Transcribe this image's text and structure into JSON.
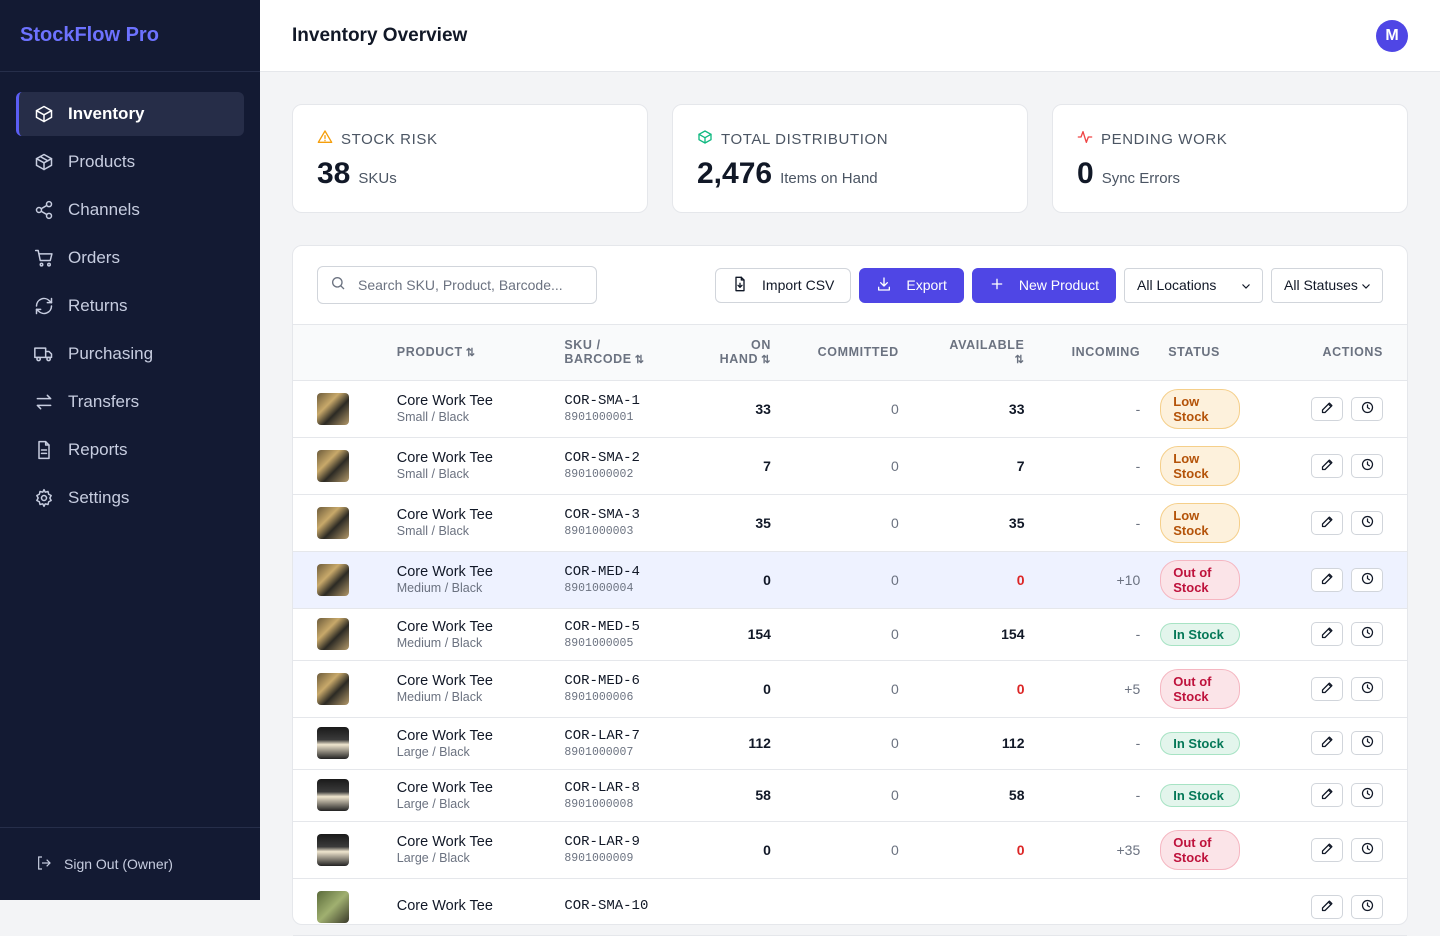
{
  "app": {
    "name": "StockFlow Pro"
  },
  "sidebar": {
    "items": [
      {
        "label": "Inventory",
        "icon": "box-icon",
        "active": true
      },
      {
        "label": "Products",
        "icon": "package-icon"
      },
      {
        "label": "Channels",
        "icon": "share-icon"
      },
      {
        "label": "Orders",
        "icon": "cart-icon"
      },
      {
        "label": "Returns",
        "icon": "refresh-icon"
      },
      {
        "label": "Purchasing",
        "icon": "truck-icon"
      },
      {
        "label": "Transfers",
        "icon": "transfer-icon"
      },
      {
        "label": "Reports",
        "icon": "document-icon"
      },
      {
        "label": "Settings",
        "icon": "gear-icon"
      }
    ],
    "signout_label": "Sign Out (Owner)"
  },
  "header": {
    "title": "Inventory Overview",
    "avatar_initial": "M"
  },
  "stats": [
    {
      "label": "STOCK RISK",
      "value": "38",
      "unit": "SKUs",
      "icon": "warning-icon",
      "color": "#f59e0b"
    },
    {
      "label": "TOTAL DISTRIBUTION",
      "value": "2,476",
      "unit": "Items on Hand",
      "icon": "cube-icon",
      "color": "#10b981"
    },
    {
      "label": "PENDING WORK",
      "value": "0",
      "unit": "Sync Errors",
      "icon": "activity-icon",
      "color": "#ef4444"
    }
  ],
  "toolbar": {
    "search_placeholder": "Search SKU, Product, Barcode...",
    "import_label": "Import CSV",
    "export_label": "Export",
    "new_label": "New Product",
    "location_value": "All Locations",
    "status_value": "All Statuses"
  },
  "table": {
    "headers": {
      "product": "PRODUCT",
      "sku_1": "SKU /",
      "sku_2": "BARCODE",
      "onhand_1": "ON",
      "onhand_2": "HAND",
      "committed": "COMMITTED",
      "available": "AVAILABLE",
      "incoming": "INCOMING",
      "status": "STATUS",
      "actions": "ACTIONS"
    },
    "rows": [
      {
        "name": "Core Work Tee",
        "variant": "Small / Black",
        "sku": "COR-SMA-1",
        "barcode": "8901000001",
        "on_hand": "33",
        "committed": "0",
        "available": "33",
        "incoming": "-",
        "status_line1": "Low",
        "status_line2": "Stock"
      },
      {
        "name": "Core Work Tee",
        "variant": "Small / Black",
        "sku": "COR-SMA-2",
        "barcode": "8901000002",
        "on_hand": "7",
        "committed": "0",
        "available": "7",
        "incoming": "-",
        "status_line1": "Low",
        "status_line2": "Stock"
      },
      {
        "name": "Core Work Tee",
        "variant": "Small / Black",
        "sku": "COR-SMA-3",
        "barcode": "8901000003",
        "on_hand": "35",
        "committed": "0",
        "available": "35",
        "incoming": "-",
        "status_line1": "Low",
        "status_line2": "Stock"
      },
      {
        "name": "Core Work Tee",
        "variant": "Medium / Black",
        "sku": "COR-MED-4",
        "barcode": "8901000004",
        "on_hand": "0",
        "committed": "0",
        "available": "0",
        "incoming": "+10",
        "status_line1": "Out of",
        "status_line2": "Stock"
      },
      {
        "name": "Core Work Tee",
        "variant": "Medium / Black",
        "sku": "COR-MED-5",
        "barcode": "8901000005",
        "on_hand": "154",
        "committed": "0",
        "available": "154",
        "incoming": "-",
        "status_line1": "In Stock",
        "status_line2": ""
      },
      {
        "name": "Core Work Tee",
        "variant": "Medium / Black",
        "sku": "COR-MED-6",
        "barcode": "8901000006",
        "on_hand": "0",
        "committed": "0",
        "available": "0",
        "incoming": "+5",
        "status_line1": "Out of",
        "status_line2": "Stock"
      },
      {
        "name": "Core Work Tee",
        "variant": "Large / Black",
        "sku": "COR-LAR-7",
        "barcode": "8901000007",
        "on_hand": "112",
        "committed": "0",
        "available": "112",
        "incoming": "-",
        "status_line1": "In Stock",
        "status_line2": ""
      },
      {
        "name": "Core Work Tee",
        "variant": "Large / Black",
        "sku": "COR-LAR-8",
        "barcode": "8901000008",
        "on_hand": "58",
        "committed": "0",
        "available": "58",
        "incoming": "-",
        "status_line1": "In Stock",
        "status_line2": ""
      },
      {
        "name": "Core Work Tee",
        "variant": "Large / Black",
        "sku": "COR-LAR-9",
        "barcode": "8901000009",
        "on_hand": "0",
        "committed": "0",
        "available": "0",
        "incoming": "+35",
        "status_line1": "Out of",
        "status_line2": "Stock"
      },
      {
        "name": "Core Work Tee",
        "variant": "",
        "sku": "COR-SMA-10",
        "barcode": "",
        "on_hand": "",
        "committed": "",
        "available": "",
        "incoming": "",
        "status_line1": "",
        "status_line2": ""
      }
    ]
  },
  "colors": {
    "accent": "#4f46e5",
    "sidebar_bg": "#131a33",
    "danger": "#dc2626"
  }
}
